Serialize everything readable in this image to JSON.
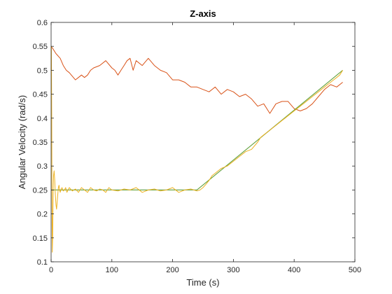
{
  "chart_data": {
    "type": "line",
    "title": "Z-axis",
    "xlabel": "Time (s)",
    "ylabel": "Angular Velocity (rad/s)",
    "xlim": [
      0,
      500
    ],
    "ylim": [
      0.1,
      0.6
    ],
    "xticks": [
      "0",
      "100",
      "200",
      "300",
      "400",
      "500"
    ],
    "yticks": [
      "0.1",
      "0.15",
      "0.2",
      "0.25",
      "0.3",
      "0.35",
      "0.4",
      "0.45",
      "0.5",
      "0.55",
      "0.6"
    ],
    "grid": false,
    "series": [
      {
        "color": "#D95319",
        "x": [
          0,
          3,
          8,
          15,
          20,
          25,
          30,
          40,
          45,
          50,
          55,
          60,
          65,
          70,
          80,
          90,
          100,
          105,
          110,
          115,
          120,
          125,
          130,
          135,
          140,
          150,
          160,
          170,
          180,
          190,
          200,
          210,
          220,
          230,
          240,
          250,
          260,
          270,
          280,
          290,
          300,
          310,
          320,
          330,
          340,
          350,
          360,
          370,
          380,
          390,
          400,
          410,
          420,
          430,
          440,
          450,
          460,
          470,
          480
        ],
        "y": [
          0.55,
          0.545,
          0.535,
          0.525,
          0.51,
          0.5,
          0.495,
          0.48,
          0.485,
          0.49,
          0.485,
          0.49,
          0.5,
          0.505,
          0.51,
          0.52,
          0.505,
          0.5,
          0.49,
          0.5,
          0.51,
          0.52,
          0.525,
          0.5,
          0.52,
          0.51,
          0.525,
          0.51,
          0.5,
          0.495,
          0.48,
          0.48,
          0.475,
          0.465,
          0.465,
          0.46,
          0.455,
          0.465,
          0.45,
          0.46,
          0.455,
          0.445,
          0.45,
          0.44,
          0.425,
          0.43,
          0.41,
          0.43,
          0.435,
          0.435,
          0.42,
          0.415,
          0.42,
          0.43,
          0.445,
          0.46,
          0.47,
          0.465,
          0.475
        ]
      },
      {
        "color": "#0072BD",
        "x": [
          0,
          240,
          480
        ],
        "y": [
          0.25,
          0.25,
          0.5
        ]
      },
      {
        "color": "#77AC30",
        "x": [
          0,
          240,
          480
        ],
        "y": [
          0.25,
          0.25,
          0.5
        ]
      },
      {
        "color": "#EDB120",
        "x": [
          0,
          0.5,
          1,
          1.5,
          2,
          2.5,
          3,
          3.5,
          4,
          5,
          6,
          7,
          8,
          9,
          10,
          11,
          12,
          13,
          14,
          15,
          16,
          18,
          20,
          22,
          24,
          26,
          28,
          30,
          35,
          40,
          45,
          50,
          55,
          60,
          65,
          70,
          75,
          80,
          85,
          90,
          95,
          100,
          110,
          120,
          130,
          140,
          150,
          160,
          170,
          180,
          190,
          200,
          210,
          220,
          230,
          240,
          245,
          250,
          255,
          260,
          265,
          270,
          275,
          280,
          290,
          300,
          310,
          320,
          330,
          340,
          345,
          350,
          360,
          370,
          380,
          385,
          390,
          400,
          410,
          420,
          430,
          440,
          450,
          460,
          465,
          470,
          475,
          480
        ],
        "y": [
          0.5,
          0.55,
          0.4,
          0.2,
          0.12,
          0.15,
          0.2,
          0.25,
          0.28,
          0.29,
          0.27,
          0.24,
          0.22,
          0.21,
          0.225,
          0.24,
          0.255,
          0.26,
          0.25,
          0.245,
          0.25,
          0.255,
          0.248,
          0.25,
          0.255,
          0.245,
          0.25,
          0.255,
          0.248,
          0.252,
          0.245,
          0.255,
          0.25,
          0.245,
          0.255,
          0.25,
          0.248,
          0.252,
          0.25,
          0.245,
          0.255,
          0.25,
          0.248,
          0.252,
          0.25,
          0.255,
          0.245,
          0.25,
          0.252,
          0.248,
          0.25,
          0.255,
          0.245,
          0.25,
          0.252,
          0.248,
          0.25,
          0.255,
          0.262,
          0.27,
          0.28,
          0.285,
          0.29,
          0.295,
          0.3,
          0.31,
          0.32,
          0.33,
          0.335,
          0.35,
          0.36,
          0.365,
          0.375,
          0.385,
          0.395,
          0.4,
          0.405,
          0.415,
          0.425,
          0.435,
          0.445,
          0.455,
          0.465,
          0.475,
          0.48,
          0.485,
          0.49,
          0.5
        ]
      }
    ]
  }
}
